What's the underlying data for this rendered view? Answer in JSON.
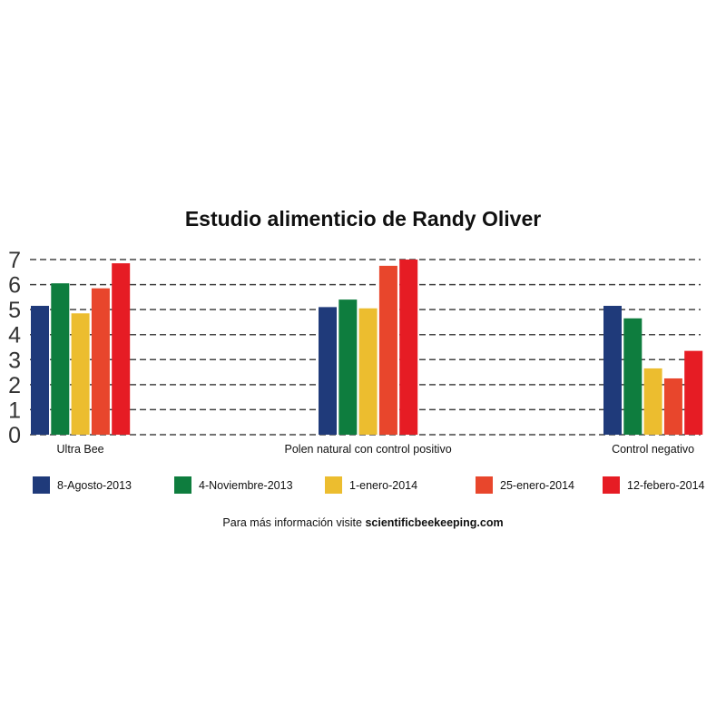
{
  "chart_data": {
    "type": "bar",
    "title": "Estudio alimenticio de Randy Oliver",
    "categories": [
      "Ultra Bee",
      "Polen natural con control positivo",
      "Control negativo"
    ],
    "series": [
      {
        "name": "8-Agosto-2013",
        "color": "#1f3a7a",
        "values": [
          5.15,
          5.1,
          5.15
        ]
      },
      {
        "name": "4-Noviembre-2013",
        "color": "#0e7d3e",
        "values": [
          6.05,
          5.4,
          4.65
        ]
      },
      {
        "name": "1-enero-2014",
        "color": "#ecbd2f",
        "values": [
          4.85,
          5.05,
          2.65
        ]
      },
      {
        "name": "25-enero-2014",
        "color": "#e8462c",
        "values": [
          5.85,
          6.75,
          2.25
        ]
      },
      {
        "name": "12-febero-2014",
        "color": "#e61c24",
        "values": [
          6.85,
          7.0,
          3.35
        ]
      }
    ],
    "yticks": [
      "0",
      "1",
      "2",
      "3",
      "4",
      "5",
      "6",
      "7"
    ],
    "ylim": [
      0,
      7
    ],
    "grid": true,
    "legend_position": "bottom"
  },
  "footer": {
    "prefix": "Para más información visite ",
    "link": "scientificbeekeeping.com"
  }
}
